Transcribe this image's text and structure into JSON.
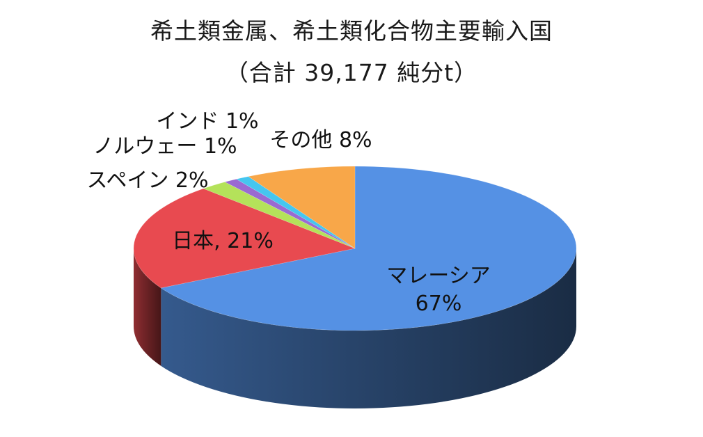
{
  "chart_data": {
    "type": "pie",
    "title": "希土類金属、希土類化合物主要輸入国",
    "subtitle": "（合計  39,177 純分t）",
    "slices": [
      {
        "name": "マレーシア",
        "label": "マレーシア",
        "value_label": "67%",
        "value": 67,
        "color": "#5591e4"
      },
      {
        "name": "日本",
        "label": "日本, 21%",
        "value": 21,
        "color": "#e84a50"
      },
      {
        "name": "スペイン",
        "label": "スペイン 2%",
        "value": 2,
        "color": "#b4e25a"
      },
      {
        "name": "ノルウェー",
        "label": "ノルウェー 1%",
        "value": 1,
        "color": "#9a6ad2"
      },
      {
        "name": "インド",
        "label": "インド 1%",
        "value": 1,
        "color": "#45c6ef"
      },
      {
        "name": "その他",
        "label": "その他  8%",
        "value": 8,
        "color": "#f8a749"
      }
    ]
  }
}
